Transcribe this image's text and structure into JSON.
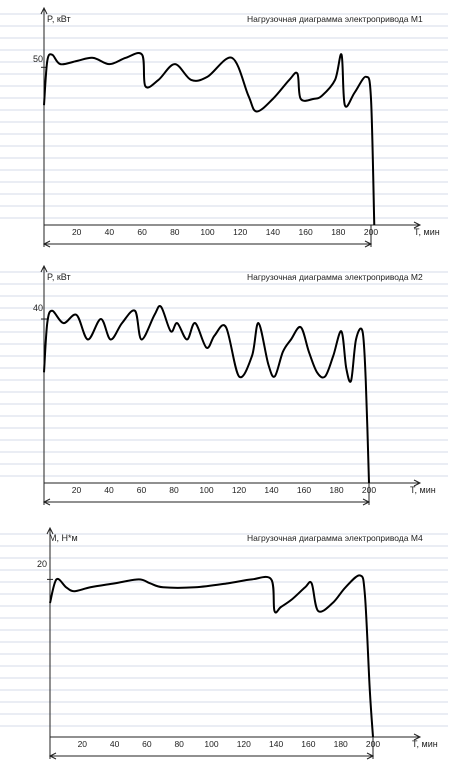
{
  "charts": [
    {
      "id": "m1",
      "title": "Нагрузочная диаграмма электропривода М1",
      "ylabel": "P, кВт",
      "xlabel": "T, мин",
      "y_tick": 50,
      "x_ticks": [
        20,
        40,
        60,
        80,
        100,
        120,
        140,
        160,
        180,
        200
      ]
    },
    {
      "id": "m2",
      "title": "Нагрузочная диаграмма электропривода М2",
      "ylabel": "P, кВт",
      "xlabel": "T, мин",
      "y_tick": 40,
      "x_ticks": [
        20,
        40,
        60,
        80,
        100,
        120,
        140,
        160,
        180,
        200
      ]
    },
    {
      "id": "m4",
      "title": "Нагрузочная диаграмма электропривода М4",
      "ylabel": "M, Н*м",
      "xlabel": "T, мин",
      "y_tick": 20,
      "x_ticks": [
        20,
        40,
        60,
        80,
        100,
        120,
        140,
        160,
        180,
        200
      ]
    }
  ],
  "chart_data": [
    {
      "type": "line",
      "title": "Нагрузочная диаграмма электропривода М1",
      "xlabel": "T, мин",
      "ylabel": "P, кВт",
      "xlim": [
        0,
        220
      ],
      "ylim": [
        0,
        65
      ],
      "x": [
        0,
        2,
        5,
        10,
        20,
        30,
        40,
        50,
        60,
        62,
        70,
        80,
        90,
        100,
        115,
        125,
        130,
        140,
        150,
        155,
        157,
        165,
        170,
        178,
        182,
        184,
        190,
        197,
        200,
        202
      ],
      "series": [
        {
          "values": [
            38,
            52,
            54,
            51,
            52,
            53,
            51,
            53,
            54,
            44,
            46,
            51,
            46,
            47,
            53,
            41,
            36,
            40,
            46,
            48,
            40,
            40,
            41,
            46,
            54,
            38,
            42,
            47,
            40,
            0
          ]
        }
      ]
    },
    {
      "type": "line",
      "title": "Нагрузочная диаграмма электропривода М2",
      "xlabel": "T, мин",
      "ylabel": "P, кВт",
      "xlim": [
        0,
        220
      ],
      "ylim": [
        0,
        50
      ],
      "x": [
        0,
        2,
        5,
        12,
        20,
        27,
        35,
        41,
        48,
        56,
        60,
        68,
        72,
        78,
        82,
        88,
        93,
        100,
        105,
        112,
        120,
        128,
        132,
        138,
        142,
        147,
        152,
        158,
        163,
        168,
        173,
        178,
        183,
        186,
        189,
        192,
        196,
        198,
        200
      ],
      "series": [
        {
          "values": [
            27,
            39,
            42,
            39,
            41,
            35,
            40,
            35,
            39,
            42,
            35,
            41,
            43,
            37,
            39,
            35,
            39,
            33,
            36,
            38,
            26,
            31,
            39,
            29,
            26,
            32,
            35,
            38,
            32,
            27,
            26,
            31,
            37,
            28,
            25,
            35,
            37,
            25,
            0
          ]
        }
      ]
    },
    {
      "type": "line",
      "title": "Нагрузочная диаграмма электропривода М4",
      "xlabel": "T, мин",
      "ylabel": "M, Н*м",
      "xlim": [
        0,
        220
      ],
      "ylim": [
        0,
        25
      ],
      "x": [
        0,
        4,
        10,
        15,
        25,
        40,
        55,
        62,
        70,
        90,
        110,
        125,
        137,
        139,
        143,
        150,
        158,
        162,
        166,
        175,
        183,
        192,
        195,
        198,
        200
      ],
      "series": [
        {
          "values": [
            17,
            20,
            19,
            18.5,
            19,
            19.5,
            20,
            19.5,
            19,
            19,
            19.5,
            20,
            20,
            16,
            16.5,
            17.5,
            19,
            19.5,
            16,
            17,
            19,
            20.5,
            18,
            6,
            0
          ]
        }
      ]
    }
  ]
}
